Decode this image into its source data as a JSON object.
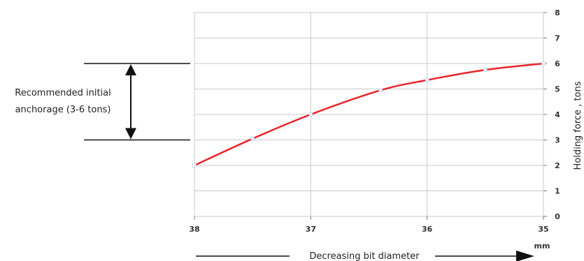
{
  "chart_data": {
    "type": "line",
    "x": [
      38,
      37.5,
      37,
      36.4,
      36,
      35.5,
      35
    ],
    "xticks": [
      38,
      37,
      36,
      35
    ],
    "xlim": [
      38,
      35
    ],
    "x_unit": "mm",
    "xlabel": "Decreasing bit diameter",
    "ylabel": "Holding force , tons",
    "ylim": [
      0,
      8
    ],
    "yticks": [
      0,
      1,
      2,
      3,
      4,
      5,
      6,
      7,
      8
    ],
    "series": [
      {
        "values": [
          2,
          3.05,
          4,
          4.95,
          5.35,
          5.75,
          6
        ],
        "color": "#e8242b"
      }
    ],
    "grid": true,
    "annotation": {
      "text_lines": [
        "Recommended initial",
        "anchorage (3-6 tons)"
      ],
      "range": [
        3,
        6
      ]
    }
  }
}
